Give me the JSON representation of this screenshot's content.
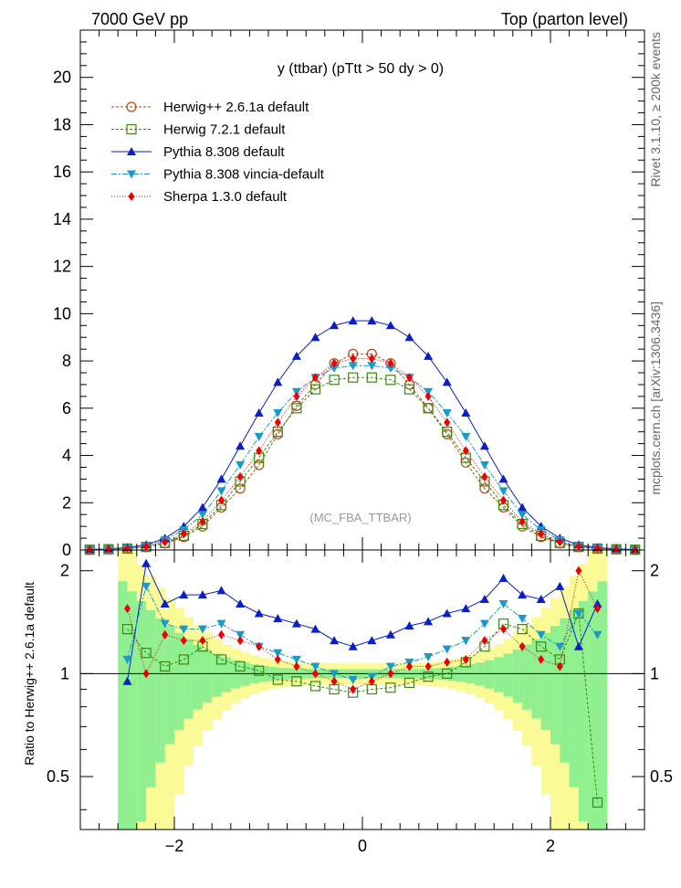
{
  "header": {
    "left": "7000 GeV pp",
    "right": "Top (parton level)"
  },
  "side_text": {
    "rivet": "Rivet 3.1.10, ≥ 200k events",
    "mcplots": "mcplots.cern.ch [arXiv:1306.3436]"
  },
  "colors": {
    "herwigpp": "#b04a0f",
    "herwig7": "#3a8a12",
    "pythia": "#0b1ec8",
    "vincia": "#1a9ac8",
    "sherpa": "#ee0000",
    "band_green": "#90f090",
    "band_yellow": "#fafa96"
  },
  "chart_data": [
    {
      "type": "scatter",
      "title": "y (ttbar) (pTtt > 50 dy > 0)",
      "watermark": "(MC_FBA_TTBAR)",
      "xlim": [
        -3.0,
        3.0
      ],
      "ylim": [
        0,
        22
      ],
      "yticks": [
        "0",
        "2",
        "4",
        "6",
        "8",
        "10",
        "12",
        "14",
        "16",
        "18",
        "20"
      ],
      "x": [
        -2.9,
        -2.7,
        -2.5,
        -2.3,
        -2.1,
        -1.9,
        -1.7,
        -1.5,
        -1.3,
        -1.1,
        -0.9,
        -0.7,
        -0.5,
        -0.3,
        -0.1,
        0.1,
        0.3,
        0.5,
        0.7,
        0.9,
        1.1,
        1.3,
        1.5,
        1.7,
        1.9,
        2.1,
        2.3,
        2.5,
        2.7,
        2.9
      ],
      "series": [
        {
          "name": "Herwig++ 2.6.1a default",
          "values": [
            0.01,
            0.03,
            0.06,
            0.12,
            0.28,
            0.55,
            1.0,
            1.8,
            2.6,
            3.6,
            4.9,
            6.1,
            7.0,
            7.9,
            8.3,
            8.3,
            7.9,
            7.0,
            6.0,
            4.9,
            3.7,
            2.6,
            1.8,
            1.0,
            0.55,
            0.28,
            0.12,
            0.06,
            0.03,
            0.01
          ]
        },
        {
          "name": "Herwig 7.2.1 default",
          "values": [
            0.01,
            0.03,
            0.06,
            0.13,
            0.3,
            0.6,
            1.1,
            1.9,
            2.9,
            3.9,
            5.0,
            6.0,
            6.8,
            7.2,
            7.3,
            7.3,
            7.2,
            6.8,
            6.0,
            5.0,
            3.9,
            2.9,
            1.9,
            1.1,
            0.6,
            0.3,
            0.13,
            0.06,
            0.03,
            0.01
          ]
        },
        {
          "name": "Pythia 8.308 default",
          "values": [
            0.02,
            0.05,
            0.1,
            0.22,
            0.5,
            1.0,
            1.8,
            3.0,
            4.4,
            5.8,
            7.1,
            8.2,
            9.0,
            9.5,
            9.7,
            9.7,
            9.5,
            9.0,
            8.2,
            7.1,
            5.8,
            4.4,
            3.0,
            1.8,
            1.0,
            0.5,
            0.22,
            0.1,
            0.05,
            0.02
          ]
        },
        {
          "name": "Pythia 8.308 vincia-default",
          "values": [
            0.02,
            0.04,
            0.08,
            0.18,
            0.42,
            0.85,
            1.5,
            2.5,
            3.6,
            4.8,
            5.8,
            6.7,
            7.3,
            7.7,
            7.8,
            7.8,
            7.7,
            7.3,
            6.7,
            5.8,
            4.8,
            3.6,
            2.5,
            1.5,
            0.85,
            0.42,
            0.18,
            0.08,
            0.04,
            0.02
          ]
        },
        {
          "name": "Sherpa 1.3.0 default",
          "values": [
            0.01,
            0.03,
            0.07,
            0.15,
            0.34,
            0.68,
            1.2,
            2.1,
            3.1,
            4.2,
            5.4,
            6.5,
            7.3,
            7.9,
            8.1,
            8.1,
            7.9,
            7.3,
            6.5,
            5.4,
            4.2,
            3.1,
            2.1,
            1.2,
            0.68,
            0.34,
            0.15,
            0.07,
            0.03,
            0.01
          ]
        }
      ]
    },
    {
      "type": "scatter",
      "ylabel": "Ratio to Herwig++ 2.6.1a default",
      "scale": "log",
      "xlim": [
        -3.0,
        3.0
      ],
      "ylim": [
        0.35,
        2.3
      ],
      "yticks": [
        "0.5",
        "1",
        "2"
      ],
      "xticks": [
        "−2",
        "0",
        "2"
      ],
      "x": [
        -2.5,
        -2.3,
        -2.1,
        -1.9,
        -1.7,
        -1.5,
        -1.3,
        -1.1,
        -0.9,
        -0.7,
        -0.5,
        -0.3,
        -0.1,
        0.1,
        0.3,
        0.5,
        0.7,
        0.9,
        1.1,
        1.3,
        1.5,
        1.7,
        1.9,
        2.1,
        2.3,
        2.5
      ],
      "series": [
        {
          "name": "Herwig 7.2.1 default",
          "values": [
            1.35,
            1.15,
            1.05,
            1.1,
            1.2,
            1.1,
            1.05,
            1.02,
            0.96,
            0.95,
            0.92,
            0.9,
            0.88,
            0.9,
            0.91,
            0.94,
            0.98,
            1.0,
            1.08,
            1.2,
            1.4,
            1.35,
            1.2,
            1.1,
            1.5,
            0.42
          ]
        },
        {
          "name": "Pythia 8.308 default",
          "values": [
            0.95,
            2.1,
            1.6,
            1.7,
            1.7,
            1.75,
            1.6,
            1.5,
            1.45,
            1.4,
            1.35,
            1.25,
            1.2,
            1.25,
            1.3,
            1.38,
            1.42,
            1.5,
            1.55,
            1.65,
            1.9,
            1.7,
            1.65,
            1.8,
            1.2,
            1.6
          ]
        },
        {
          "name": "Pythia 8.308 vincia-default",
          "values": [
            1.1,
            1.8,
            1.4,
            1.35,
            1.35,
            1.4,
            1.3,
            1.2,
            1.15,
            1.1,
            1.05,
            1.0,
            0.96,
            0.98,
            1.05,
            1.08,
            1.12,
            1.18,
            1.25,
            1.4,
            1.6,
            1.45,
            1.3,
            1.2,
            1.5,
            1.3
          ]
        },
        {
          "name": "Sherpa 1.3.0 default",
          "values": [
            1.55,
            1.0,
            1.3,
            1.25,
            1.25,
            1.3,
            1.25,
            1.2,
            1.1,
            1.05,
            1.0,
            0.95,
            0.9,
            0.95,
            1.0,
            1.05,
            1.05,
            1.08,
            1.1,
            1.25,
            1.35,
            1.2,
            1.1,
            1.05,
            2.0,
            1.55
          ]
        }
      ]
    }
  ]
}
